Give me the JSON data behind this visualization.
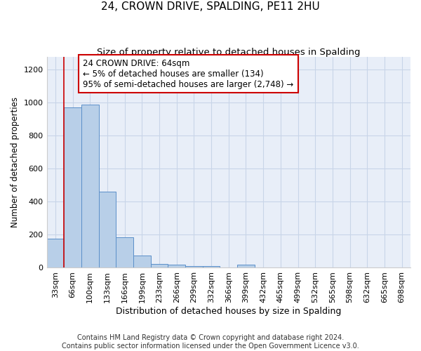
{
  "title": "24, CROWN DRIVE, SPALDING, PE11 2HU",
  "subtitle": "Size of property relative to detached houses in Spalding",
  "xlabel": "Distribution of detached houses by size in Spalding",
  "ylabel": "Number of detached properties",
  "categories": [
    "33sqm",
    "66sqm",
    "100sqm",
    "133sqm",
    "166sqm",
    "199sqm",
    "233sqm",
    "266sqm",
    "299sqm",
    "332sqm",
    "366sqm",
    "399sqm",
    "432sqm",
    "465sqm",
    "499sqm",
    "532sqm",
    "565sqm",
    "598sqm",
    "632sqm",
    "665sqm",
    "698sqm"
  ],
  "bar_heights": [
    175,
    970,
    990,
    460,
    185,
    75,
    25,
    18,
    12,
    10,
    0,
    18,
    0,
    0,
    0,
    0,
    0,
    0,
    0,
    0,
    0
  ],
  "bar_color": "#b8cfe8",
  "bar_edge_color": "#5b8fc9",
  "ylim": [
    0,
    1280
  ],
  "yticks": [
    0,
    200,
    400,
    600,
    800,
    1000,
    1200
  ],
  "grid_color": "#c8d5e8",
  "bg_color": "#e8eef8",
  "red_line_x": 0.5,
  "annotation_text": "24 CROWN DRIVE: 64sqm\n← 5% of detached houses are smaller (134)\n95% of semi-detached houses are larger (2,748) →",
  "annotation_box_color": "#cc0000",
  "footer_text": "Contains HM Land Registry data © Crown copyright and database right 2024.\nContains public sector information licensed under the Open Government Licence v3.0.",
  "title_fontsize": 11,
  "subtitle_fontsize": 9.5,
  "annotation_fontsize": 8.5,
  "ylabel_fontsize": 8.5,
  "xlabel_fontsize": 9,
  "footer_fontsize": 7,
  "tick_fontsize": 8
}
